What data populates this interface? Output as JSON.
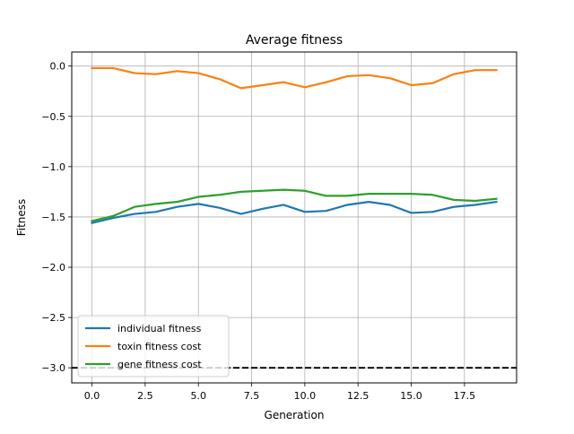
{
  "chart_data": {
    "type": "line",
    "title": "Average fitness",
    "xlabel": "Generation",
    "ylabel": "Fitness",
    "xlim": [
      -0.95,
      19.95
    ],
    "ylim": [
      -3.15,
      0.14
    ],
    "xticks": [
      0.0,
      2.5,
      5.0,
      7.5,
      10.0,
      12.5,
      15.0,
      17.5
    ],
    "xtick_labels": [
      "0.0",
      "2.5",
      "5.0",
      "7.5",
      "10.0",
      "12.5",
      "15.0",
      "17.5"
    ],
    "yticks": [
      0.0,
      -0.5,
      -1.0,
      -1.5,
      -2.0,
      -2.5,
      -3.0
    ],
    "ytick_labels": [
      "0.0",
      "−0.5",
      "−1.0",
      "−1.5",
      "−2.0",
      "−2.5",
      "−3.0"
    ],
    "grid": true,
    "legend_location": "lower-left",
    "x": [
      0,
      1,
      2,
      3,
      4,
      5,
      6,
      7,
      8,
      9,
      10,
      11,
      12,
      13,
      14,
      15,
      16,
      17,
      18,
      19
    ],
    "series": [
      {
        "name": "individual fitness",
        "color": "#1f77b4",
        "values": [
          -1.56,
          -1.51,
          -1.47,
          -1.45,
          -1.4,
          -1.37,
          -1.41,
          -1.47,
          -1.42,
          -1.38,
          -1.45,
          -1.44,
          -1.38,
          -1.35,
          -1.38,
          -1.46,
          -1.45,
          -1.4,
          -1.38,
          -1.35
        ]
      },
      {
        "name": "toxin fitness cost",
        "color": "#ff7f0e",
        "values": [
          -0.02,
          -0.02,
          -0.07,
          -0.08,
          -0.05,
          -0.07,
          -0.13,
          -0.22,
          -0.19,
          -0.16,
          -0.21,
          -0.16,
          -0.1,
          -0.09,
          -0.12,
          -0.19,
          -0.17,
          -0.08,
          -0.04,
          -0.04
        ]
      },
      {
        "name": "gene fitness cost",
        "color": "#2ca02c",
        "values": [
          -1.54,
          -1.49,
          -1.4,
          -1.37,
          -1.35,
          -1.3,
          -1.28,
          -1.25,
          -1.24,
          -1.23,
          -1.24,
          -1.29,
          -1.29,
          -1.27,
          -1.27,
          -1.27,
          -1.28,
          -1.33,
          -1.34,
          -1.32
        ]
      }
    ],
    "reference_lines": [
      {
        "y": -3.0,
        "color": "#000000",
        "style": "dashed"
      }
    ]
  }
}
